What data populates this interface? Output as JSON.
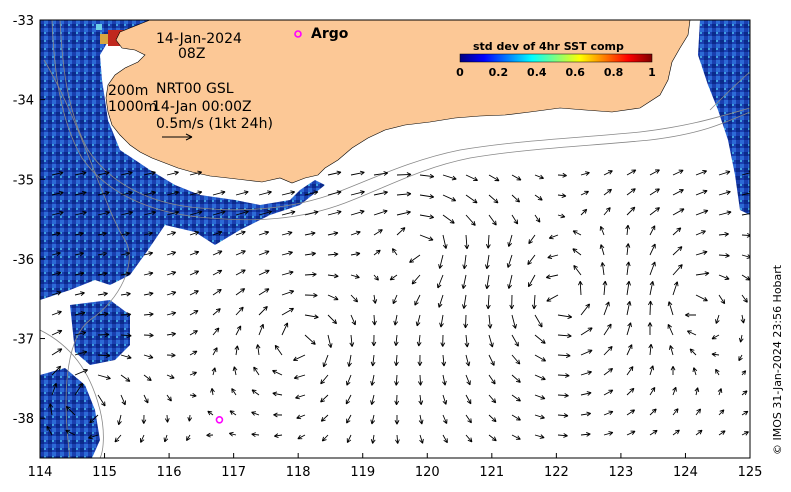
{
  "map": {
    "x_ticks": [
      "114",
      "115",
      "116",
      "117",
      "118",
      "119",
      "120",
      "121",
      "122",
      "123",
      "124",
      "125"
    ],
    "y_ticks": [
      "-33",
      "-34",
      "-35",
      "-36",
      "-37",
      "-38"
    ],
    "x_range": [
      114,
      125
    ],
    "y_range": [
      -38.5,
      -33
    ],
    "land_color": "#fcc896",
    "ocean_color": "#ffffff"
  },
  "annotations": {
    "date": "14-Jan-2024",
    "time": "08Z",
    "depth_200": "200m",
    "depth_1000": "1000m",
    "product": "NRT00 GSL",
    "product_time": "14-Jan 00:00Z",
    "scale": "0.5m/s (1kt 24h)",
    "argo_label": "Argo"
  },
  "colorbar": {
    "title": "std dev of 4hr SST comp",
    "ticks": [
      "0",
      "0.2",
      "0.4",
      "0.6",
      "0.8",
      "1"
    ]
  },
  "argo_float": {
    "lon": 116.78,
    "lat": -38.02,
    "color": "#ff00ff"
  },
  "credit": "© IMOS 31-Jan-2024 23:56 Hobart"
}
